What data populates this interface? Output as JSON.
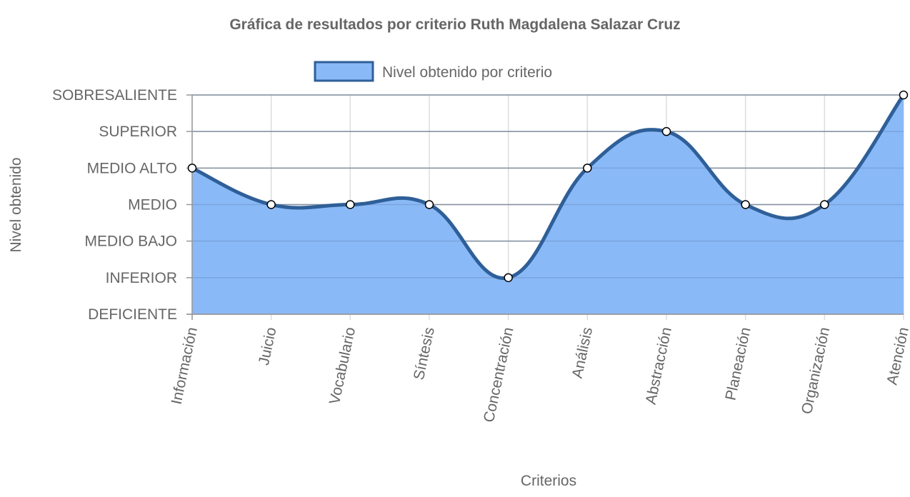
{
  "chart_data": {
    "type": "line",
    "title": "Gráfica de resultados por criterio Ruth Magdalena Salazar Cruz",
    "xlabel": "Criterios",
    "ylabel": "Nivel obtenido",
    "categories": [
      "Información",
      "Juicio",
      "Vocabulario",
      "Síntesis",
      "Concentración",
      "Análisis",
      "Abstracción",
      "Planeación",
      "Organización",
      "Atención"
    ],
    "y_levels": [
      "DEFICIENTE",
      "INFERIOR",
      "MEDIO BAJO",
      "MEDIO",
      "MEDIO ALTO",
      "SUPERIOR",
      "SOBRESALIENTE"
    ],
    "ylim": [
      0,
      6
    ],
    "grid": true,
    "legend_position": "top",
    "series": [
      {
        "name": "Nivel obtenido por criterio",
        "values": [
          4,
          3,
          3,
          3,
          1,
          4,
          5,
          3,
          3,
          6
        ],
        "fill": true,
        "line_color": "#2f5f98",
        "fill_color": "#8ab9f7"
      }
    ]
  }
}
